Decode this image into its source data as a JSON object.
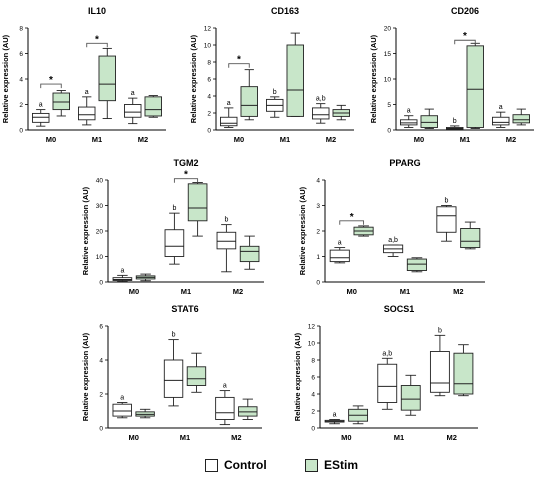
{
  "colors": {
    "control": "#ffffff",
    "estim": "#c8e6c9",
    "stroke": "#222222",
    "bracket": "#555555"
  },
  "legend": {
    "control_label": "Control",
    "estim_label": "EStim"
  },
  "chart_data": [
    {
      "type": "box",
      "title": "IL10",
      "ylabel": "Relative expression (AU)",
      "ylim": [
        0,
        8
      ],
      "yticks": [
        0,
        2,
        4,
        6,
        8
      ],
      "categories": [
        "M0",
        "M1",
        "M2"
      ],
      "series_names": [
        "Control",
        "EStim"
      ],
      "boxes": [
        [
          {
            "min": 0.3,
            "q1": 0.6,
            "med": 1.0,
            "q3": 1.3,
            "max": 1.6
          },
          {
            "min": 1.1,
            "q1": 1.6,
            "med": 2.2,
            "q3": 2.9,
            "max": 3.1
          }
        ],
        [
          {
            "min": 0.4,
            "q1": 0.8,
            "med": 1.2,
            "q3": 1.8,
            "max": 2.6
          },
          {
            "min": 0.9,
            "q1": 2.3,
            "med": 3.6,
            "q3": 5.8,
            "max": 6.4
          }
        ],
        [
          {
            "min": 0.5,
            "q1": 1.0,
            "med": 1.4,
            "q3": 2.0,
            "max": 2.5
          },
          {
            "min": 1.0,
            "q1": 1.1,
            "med": 1.6,
            "q3": 2.6,
            "max": 2.7
          }
        ]
      ],
      "sig": [
        [
          {
            "label": "a",
            "y": 1.6
          }
        ],
        [
          {
            "label": "a",
            "y": 2.6
          }
        ],
        [
          {
            "label": "a",
            "y": 2.5
          }
        ]
      ],
      "brackets": [
        {
          "cat": 0,
          "y": 3.6,
          "label": "*"
        },
        {
          "cat": 1,
          "y": 6.8,
          "label": "*"
        }
      ]
    },
    {
      "type": "box",
      "title": "CD163",
      "ylabel": "Relative expression (AU)",
      "ylim": [
        0,
        12
      ],
      "yticks": [
        0,
        2,
        4,
        6,
        8,
        10,
        12
      ],
      "categories": [
        "M0",
        "M1",
        "M2"
      ],
      "series_names": [
        "Control",
        "EStim"
      ],
      "boxes": [
        [
          {
            "min": 0.3,
            "q1": 0.5,
            "med": 0.8,
            "q3": 1.5,
            "max": 2.6
          },
          {
            "min": 1.2,
            "q1": 1.6,
            "med": 2.9,
            "q3": 5.1,
            "max": 7.1
          }
        ],
        [
          {
            "min": 1.5,
            "q1": 2.2,
            "med": 2.9,
            "q3": 3.6,
            "max": 3.9
          },
          {
            "min": 1.6,
            "q1": 1.6,
            "med": 4.7,
            "q3": 10.0,
            "max": 11.4
          }
        ],
        [
          {
            "min": 0.8,
            "q1": 1.3,
            "med": 1.8,
            "q3": 2.6,
            "max": 3.1
          },
          {
            "min": 1.2,
            "q1": 1.6,
            "med": 2.0,
            "q3": 2.4,
            "max": 2.9
          }
        ]
      ],
      "sig": [
        [
          {
            "label": "a",
            "y": 2.6
          }
        ],
        [
          {
            "label": "b",
            "y": 3.9
          }
        ],
        [
          {
            "label": "a,b",
            "y": 3.1
          }
        ]
      ],
      "brackets": [
        {
          "cat": 0,
          "y": 7.8,
          "label": "*"
        }
      ]
    },
    {
      "type": "box",
      "title": "CD206",
      "ylabel": "Relative expression (AU)",
      "ylim": [
        0,
        20
      ],
      "yticks": [
        0,
        5,
        10,
        15,
        20
      ],
      "categories": [
        "M0",
        "M1",
        "M2"
      ],
      "series_names": [
        "Control",
        "EStim"
      ],
      "boxes": [
        [
          {
            "min": 0.5,
            "q1": 1.0,
            "med": 1.4,
            "q3": 2.0,
            "max": 2.8
          },
          {
            "min": 0.3,
            "q1": 0.5,
            "med": 1.5,
            "q3": 2.8,
            "max": 4.1
          }
        ],
        [
          {
            "min": 0.1,
            "q1": 0.2,
            "med": 0.3,
            "q3": 0.5,
            "max": 0.8
          },
          {
            "min": 0.3,
            "q1": 0.5,
            "med": 8.0,
            "q3": 16.5,
            "max": 17.0
          }
        ],
        [
          {
            "min": 0.5,
            "q1": 1.0,
            "med": 1.5,
            "q3": 2.5,
            "max": 3.5
          },
          {
            "min": 1.0,
            "q1": 1.4,
            "med": 2.0,
            "q3": 3.0,
            "max": 4.1
          }
        ]
      ],
      "sig": [
        [
          {
            "label": "a",
            "y": 2.8
          }
        ],
        [
          {
            "label": "b",
            "y": 0.8
          }
        ],
        [
          {
            "label": "a",
            "y": 3.5
          }
        ]
      ],
      "brackets": [
        {
          "cat": 1,
          "y": 17.6,
          "label": "*"
        }
      ]
    },
    {
      "type": "box",
      "title": "TGM2",
      "ylabel": "Relative expression (AU)",
      "ylim": [
        0,
        40
      ],
      "yticks": [
        0,
        10,
        20,
        30,
        40
      ],
      "categories": [
        "M0",
        "M1",
        "M2"
      ],
      "series_names": [
        "Control",
        "EStim"
      ],
      "boxes": [
        [
          {
            "min": 0.2,
            "q1": 0.6,
            "med": 1.0,
            "q3": 1.7,
            "max": 2.6
          },
          {
            "min": 0.5,
            "q1": 1.2,
            "med": 1.8,
            "q3": 2.4,
            "max": 3.1
          }
        ],
        [
          {
            "min": 7.0,
            "q1": 10.0,
            "med": 14.0,
            "q3": 20.5,
            "max": 27.0
          },
          {
            "min": 18.0,
            "q1": 24.0,
            "med": 29.0,
            "q3": 38.5,
            "max": 39.0
          }
        ],
        [
          {
            "min": 4.0,
            "q1": 13.0,
            "med": 16.0,
            "q3": 19.5,
            "max": 22.5
          },
          {
            "min": 5.0,
            "q1": 8.0,
            "med": 12.0,
            "q3": 14.0,
            "max": 18.0
          }
        ]
      ],
      "sig": [
        [
          {
            "label": "a",
            "y": 2.6
          }
        ],
        [
          {
            "label": "b",
            "y": 27.0
          }
        ],
        [
          {
            "label": "b",
            "y": 22.5
          }
        ]
      ],
      "brackets": [
        {
          "cat": 1,
          "y": 40.5,
          "label": "*"
        }
      ]
    },
    {
      "type": "box",
      "title": "PPARG",
      "ylabel": "Relative expression (AU)",
      "ylim": [
        0,
        4
      ],
      "yticks": [
        0,
        1,
        2,
        3,
        4
      ],
      "categories": [
        "M0",
        "M1",
        "M2"
      ],
      "series_names": [
        "Control",
        "EStim"
      ],
      "boxes": [
        [
          {
            "min": 0.75,
            "q1": 0.8,
            "med": 0.95,
            "q3": 1.25,
            "max": 1.35
          },
          {
            "min": 1.8,
            "q1": 1.85,
            "med": 2.0,
            "q3": 2.15,
            "max": 2.2
          }
        ],
        [
          {
            "min": 1.0,
            "q1": 1.15,
            "med": 1.3,
            "q3": 1.45,
            "max": 1.45
          },
          {
            "min": 0.4,
            "q1": 0.45,
            "med": 0.7,
            "q3": 0.9,
            "max": 0.95
          }
        ],
        [
          {
            "min": 1.6,
            "q1": 1.95,
            "med": 2.6,
            "q3": 2.95,
            "max": 3.0
          },
          {
            "min": 1.3,
            "q1": 1.35,
            "med": 1.6,
            "q3": 2.1,
            "max": 2.35
          }
        ]
      ],
      "sig": [
        [
          {
            "label": "a",
            "y": 1.35
          }
        ],
        [
          {
            "label": "a,b",
            "y": 1.45
          }
        ],
        [
          {
            "label": "b",
            "y": 3.0
          }
        ]
      ],
      "brackets": [
        {
          "cat": 0,
          "y": 2.4,
          "label": "*"
        }
      ]
    },
    {
      "type": "box",
      "title": "STAT6",
      "ylabel": "Relative expression (AU)",
      "ylim": [
        0,
        6
      ],
      "yticks": [
        0,
        2,
        4,
        6
      ],
      "categories": [
        "M0",
        "M1",
        "M2"
      ],
      "series_names": [
        "Control",
        "EStim"
      ],
      "boxes": [
        [
          {
            "min": 0.6,
            "q1": 0.7,
            "med": 1.0,
            "q3": 1.4,
            "max": 1.5
          },
          {
            "min": 0.6,
            "q1": 0.7,
            "med": 0.8,
            "q3": 0.95,
            "max": 1.1
          }
        ],
        [
          {
            "min": 1.3,
            "q1": 1.8,
            "med": 2.8,
            "q3": 4.0,
            "max": 5.2
          },
          {
            "min": 2.1,
            "q1": 2.5,
            "med": 2.9,
            "q3": 3.6,
            "max": 4.4
          }
        ],
        [
          {
            "min": 0.2,
            "q1": 0.5,
            "med": 0.9,
            "q3": 1.8,
            "max": 2.2
          },
          {
            "min": 0.5,
            "q1": 0.7,
            "med": 0.95,
            "q3": 1.25,
            "max": 1.7
          }
        ]
      ],
      "sig": [
        [
          {
            "label": "a",
            "y": 1.5
          }
        ],
        [
          {
            "label": "b",
            "y": 5.2
          }
        ],
        [
          {
            "label": "a",
            "y": 2.2
          }
        ]
      ],
      "brackets": []
    },
    {
      "type": "box",
      "title": "SOCS1",
      "ylabel": "Relative expression (AU)",
      "ylim": [
        0,
        12
      ],
      "yticks": [
        0,
        2,
        4,
        6,
        8,
        10,
        12
      ],
      "categories": [
        "M0",
        "M1",
        "M2"
      ],
      "series_names": [
        "Control",
        "EStim"
      ],
      "boxes": [
        [
          {
            "min": 0.5,
            "q1": 0.7,
            "med": 0.8,
            "q3": 0.9,
            "max": 1.0
          },
          {
            "min": 0.5,
            "q1": 0.8,
            "med": 1.5,
            "q3": 2.2,
            "max": 2.6
          }
        ],
        [
          {
            "min": 2.2,
            "q1": 3.0,
            "med": 4.9,
            "q3": 7.5,
            "max": 8.2
          },
          {
            "min": 1.5,
            "q1": 2.1,
            "med": 3.4,
            "q3": 5.0,
            "max": 6.2
          }
        ],
        [
          {
            "min": 3.8,
            "q1": 4.2,
            "med": 5.3,
            "q3": 9.0,
            "max": 10.9
          },
          {
            "min": 3.8,
            "q1": 4.0,
            "med": 5.2,
            "q3": 8.8,
            "max": 9.8
          }
        ]
      ],
      "sig": [
        [
          {
            "label": "a",
            "y": 1.0
          }
        ],
        [
          {
            "label": "a,b",
            "y": 8.2
          }
        ],
        [
          {
            "label": "b",
            "y": 10.9
          }
        ]
      ],
      "brackets": []
    }
  ]
}
